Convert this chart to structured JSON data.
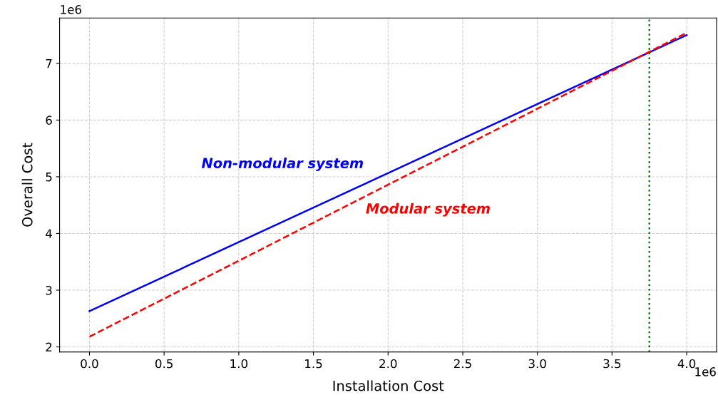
{
  "chart_data": {
    "type": "line",
    "xlabel": "Installation Cost",
    "ylabel": "Overall Cost",
    "xlim": [
      -0.2,
      4.2
    ],
    "ylim": [
      1.91,
      7.8
    ],
    "xticks": [
      {
        "value": 0,
        "label": "0.0"
      },
      {
        "value": 0.5,
        "label": "0.5"
      },
      {
        "value": 1,
        "label": "1.0"
      },
      {
        "value": 1.5,
        "label": "1.5"
      },
      {
        "value": 2,
        "label": "2.0"
      },
      {
        "value": 2.5,
        "label": "2.5"
      },
      {
        "value": 3,
        "label": "3.0"
      },
      {
        "value": 3.5,
        "label": "3.5"
      },
      {
        "value": 4,
        "label": "4.0"
      }
    ],
    "yticks": [
      2,
      3,
      4,
      5,
      6,
      7
    ],
    "x": [
      0,
      4
    ],
    "series": [
      {
        "name": "Non-modular system",
        "color": "#0000ff",
        "line_style": "solid",
        "values": [
          2.63,
          7.5
        ]
      },
      {
        "name": "Modular system",
        "color": "#ff0000",
        "line_style": "dashed",
        "values": [
          2.18,
          7.54
        ]
      }
    ],
    "ref_lines": [
      {
        "axis": "x",
        "value": 3.75,
        "color": "#008000",
        "line_style": "dotted"
      }
    ],
    "annotations": [
      "1e6",
      "1e6"
    ],
    "grid": true,
    "legend": false,
    "marker": "none"
  }
}
